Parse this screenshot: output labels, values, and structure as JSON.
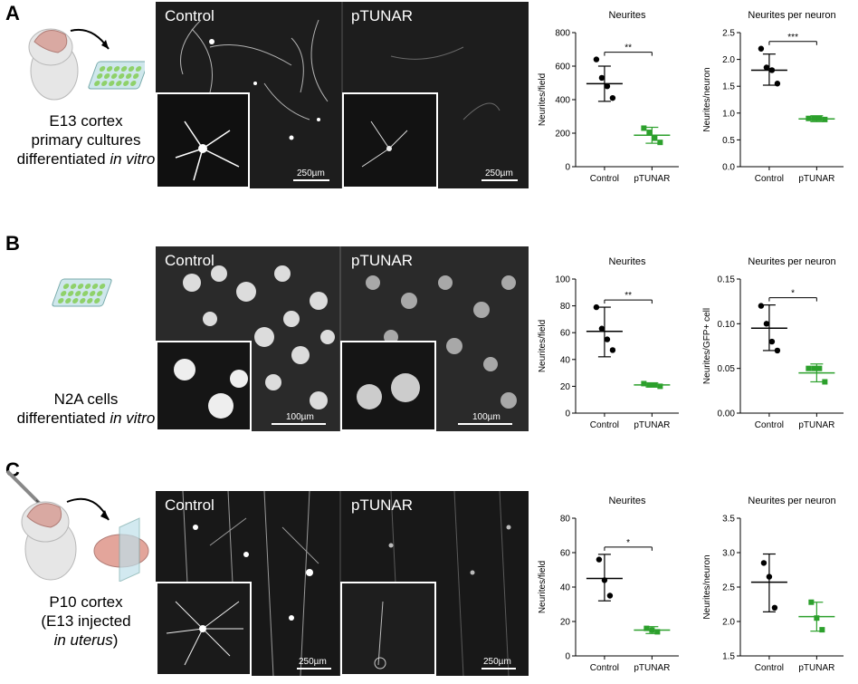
{
  "panels": [
    {
      "letter": "A",
      "caption": [
        "E13 cortex",
        "primary cultures",
        "differentiated"
      ],
      "caption_italic": "in vitro",
      "micro_left_label": "Control",
      "micro_right_label": "pTUNAR",
      "scalebar_left": "250µm",
      "scalebar_right": "250µm"
    },
    {
      "letter": "B",
      "caption": [
        "N2A cells",
        "differentiated"
      ],
      "caption_italic": "in vitro",
      "micro_left_label": "Control",
      "micro_right_label": "pTUNAR",
      "scalebar_left": "100µm",
      "scalebar_right": "100µm"
    },
    {
      "letter": "C",
      "caption": [
        "P10 cortex",
        "(E13 injected"
      ],
      "caption_italic": "in uterus",
      "caption_suffix": ")",
      "micro_left_label": "Control",
      "micro_right_label": "pTUNAR",
      "scalebar_left": "250µm",
      "scalebar_right": "250µm"
    }
  ],
  "colors": {
    "control": "#000000",
    "ptunar": "#2ca02c",
    "micro_bg": "#1a1a1a"
  },
  "chart_data": [
    {
      "type": "scatter",
      "panel": "A",
      "title": "Neurites",
      "ylabel": "Neurites/field",
      "categories": [
        "Control",
        "pTUNAR"
      ],
      "ylim": [
        0,
        800
      ],
      "yticks": [
        0,
        200,
        400,
        600,
        800
      ],
      "tick_labels": [
        "0",
        "200",
        "400",
        "600",
        "800"
      ],
      "series": [
        {
          "points": [
            640,
            530,
            480,
            410
          ],
          "mean": 495,
          "err": [
            390,
            600
          ]
        },
        {
          "points": [
            230,
            205,
            170,
            145
          ],
          "mean": 188,
          "err": [
            140,
            235
          ]
        }
      ],
      "significance": "**"
    },
    {
      "type": "scatter",
      "panel": "A",
      "title": "Neurites per neuron",
      "ylabel": "Neurites/neuron",
      "categories": [
        "Control",
        "pTUNAR"
      ],
      "ylim": [
        0,
        2.5
      ],
      "yticks": [
        0,
        0.5,
        1.0,
        1.5,
        2.0,
        2.5
      ],
      "tick_labels": [
        "0.0",
        "0.5",
        "1.0",
        "1.5",
        "2.0",
        "2.5"
      ],
      "series": [
        {
          "points": [
            2.2,
            1.85,
            1.8,
            1.55
          ],
          "mean": 1.8,
          "err": [
            1.52,
            2.1
          ]
        },
        {
          "points": [
            0.9,
            0.9,
            0.9,
            0.88
          ],
          "mean": 0.89,
          "err": [
            0.84,
            0.95
          ]
        }
      ],
      "significance": "***"
    },
    {
      "type": "scatter",
      "panel": "B",
      "title": "Neurites",
      "ylabel": "Neurites/field",
      "categories": [
        "Control",
        "pTUNAR"
      ],
      "ylim": [
        0,
        100
      ],
      "yticks": [
        0,
        20,
        40,
        60,
        80,
        100
      ],
      "tick_labels": [
        "0",
        "20",
        "40",
        "60",
        "80",
        "100"
      ],
      "series": [
        {
          "points": [
            79,
            63,
            55,
            47
          ],
          "mean": 61,
          "err": [
            42,
            79
          ]
        },
        {
          "points": [
            22,
            21,
            21,
            20
          ],
          "mean": 21,
          "err": [
            19.5,
            22.5
          ]
        }
      ],
      "significance": "**"
    },
    {
      "type": "scatter",
      "panel": "B",
      "title": "Neurites per neuron",
      "ylabel": "Neurites/GFP+ cell",
      "categories": [
        "Control",
        "pTUNAR"
      ],
      "ylim": [
        0,
        0.15
      ],
      "yticks": [
        0,
        0.05,
        0.1,
        0.15
      ],
      "tick_labels": [
        "0.00",
        "0.05",
        "0.10",
        "0.15"
      ],
      "series": [
        {
          "points": [
            0.12,
            0.1,
            0.08,
            0.07
          ],
          "mean": 0.095,
          "err": [
            0.07,
            0.121
          ]
        },
        {
          "points": [
            0.05,
            0.05,
            0.05,
            0.035
          ],
          "mean": 0.045,
          "err": [
            0.035,
            0.055
          ]
        }
      ],
      "significance": "*"
    },
    {
      "type": "scatter",
      "panel": "C",
      "title": "Neurites",
      "ylabel": "Neurites/field",
      "categories": [
        "Control",
        "pTUNAR"
      ],
      "ylim": [
        0,
        80
      ],
      "yticks": [
        0,
        20,
        40,
        60,
        80
      ],
      "tick_labels": [
        "0",
        "20",
        "40",
        "60",
        "80"
      ],
      "series": [
        {
          "points": [
            56,
            44,
            35
          ],
          "mean": 45,
          "err": [
            32,
            59
          ]
        },
        {
          "points": [
            16,
            15,
            14
          ],
          "mean": 15,
          "err": [
            13,
            17
          ]
        }
      ],
      "significance": "*"
    },
    {
      "type": "scatter",
      "panel": "C",
      "title": "Neurites per neuron",
      "ylabel": "Neurites/neuron",
      "categories": [
        "Control",
        "pTUNAR"
      ],
      "ylim": [
        1.5,
        3.5
      ],
      "yticks": [
        1.5,
        2.0,
        2.5,
        3.0,
        3.5
      ],
      "tick_labels": [
        "1.5",
        "2.0",
        "2.5",
        "3.0",
        "3.5"
      ],
      "series": [
        {
          "points": [
            2.85,
            2.65,
            2.2
          ],
          "mean": 2.57,
          "err": [
            2.14,
            2.98
          ]
        },
        {
          "points": [
            2.28,
            2.05,
            1.88
          ],
          "mean": 2.07,
          "err": [
            1.86,
            2.28
          ]
        }
      ],
      "significance": ""
    }
  ]
}
